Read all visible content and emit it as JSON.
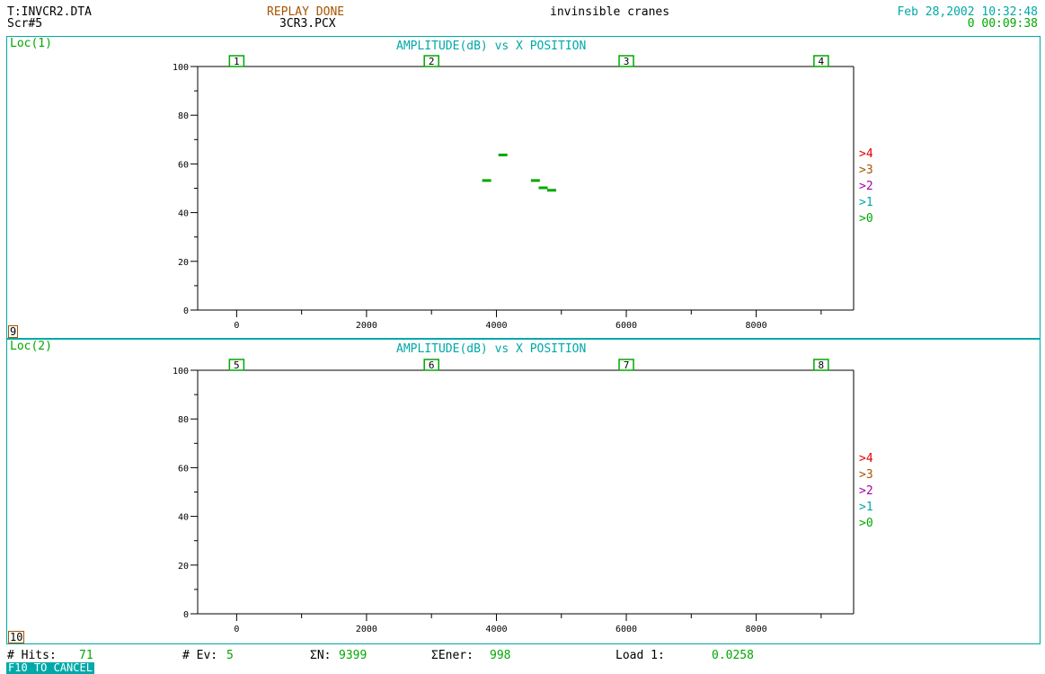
{
  "header": {
    "file": "T:INVCR2.DTA",
    "screen": "Scr#5",
    "status": "REPLAY DONE",
    "pcx": "3CR3.PCX",
    "title": "invinsible cranes",
    "datetime": "Feb 28,2002 10:32:48",
    "elapsed": "0 00:09:38"
  },
  "panels": [
    {
      "loc": "Loc(1)",
      "title": "AMPLITUDE(dB) vs X POSITION",
      "corner": "9",
      "sensors": [
        "1",
        "2",
        "3",
        "4"
      ],
      "legend": [
        ">4",
        ">3",
        ">2",
        ">1",
        ">0"
      ]
    },
    {
      "loc": "Loc(2)",
      "title": "AMPLITUDE(dB) vs X POSITION",
      "corner": "10",
      "sensors": [
        "5",
        "6",
        "7",
        "8"
      ],
      "legend": [
        ">4",
        ">3",
        ">2",
        ">1",
        ">0"
      ]
    }
  ],
  "colors": {
    "teal": "#00a8a8",
    "green": "#00a800",
    "brown": "#a85400",
    "red": "#e00000",
    "magenta": "#a800a8"
  },
  "chart_data": [
    {
      "type": "scatter",
      "title": "AMPLITUDE(dB) vs X POSITION",
      "xlabel": "",
      "ylabel": "",
      "xlim": [
        -600,
        9500
      ],
      "ylim": [
        0,
        100
      ],
      "xticks": [
        0,
        2000,
        4000,
        6000,
        8000
      ],
      "yticks": [
        0,
        20,
        40,
        60,
        80,
        100
      ],
      "sensor_positions": [
        0,
        3000,
        6000,
        9000
      ],
      "points": [
        {
          "x": 3850,
          "y": 53
        },
        {
          "x": 4100,
          "y": 63.5
        },
        {
          "x": 4600,
          "y": 53
        },
        {
          "x": 4720,
          "y": 50
        },
        {
          "x": 4850,
          "y": 49
        }
      ]
    },
    {
      "type": "scatter",
      "title": "AMPLITUDE(dB) vs X POSITION",
      "xlabel": "",
      "ylabel": "",
      "xlim": [
        -600,
        9500
      ],
      "ylim": [
        0,
        100
      ],
      "xticks": [
        0,
        2000,
        4000,
        6000,
        8000
      ],
      "yticks": [
        0,
        20,
        40,
        60,
        80,
        100
      ],
      "sensor_positions": [
        0,
        3000,
        6000,
        9000
      ],
      "points": []
    }
  ],
  "footer": {
    "hits_label": "# Hits:",
    "hits": "71",
    "ev_label": "# Ev:",
    "ev": "5",
    "n_label": "ΣN:",
    "n": "9399",
    "ener_label": "ΣEner:",
    "ener": "998",
    "load_label": "Load 1:",
    "load": "0.0258",
    "cancel": "F10 TO CANCEL"
  }
}
